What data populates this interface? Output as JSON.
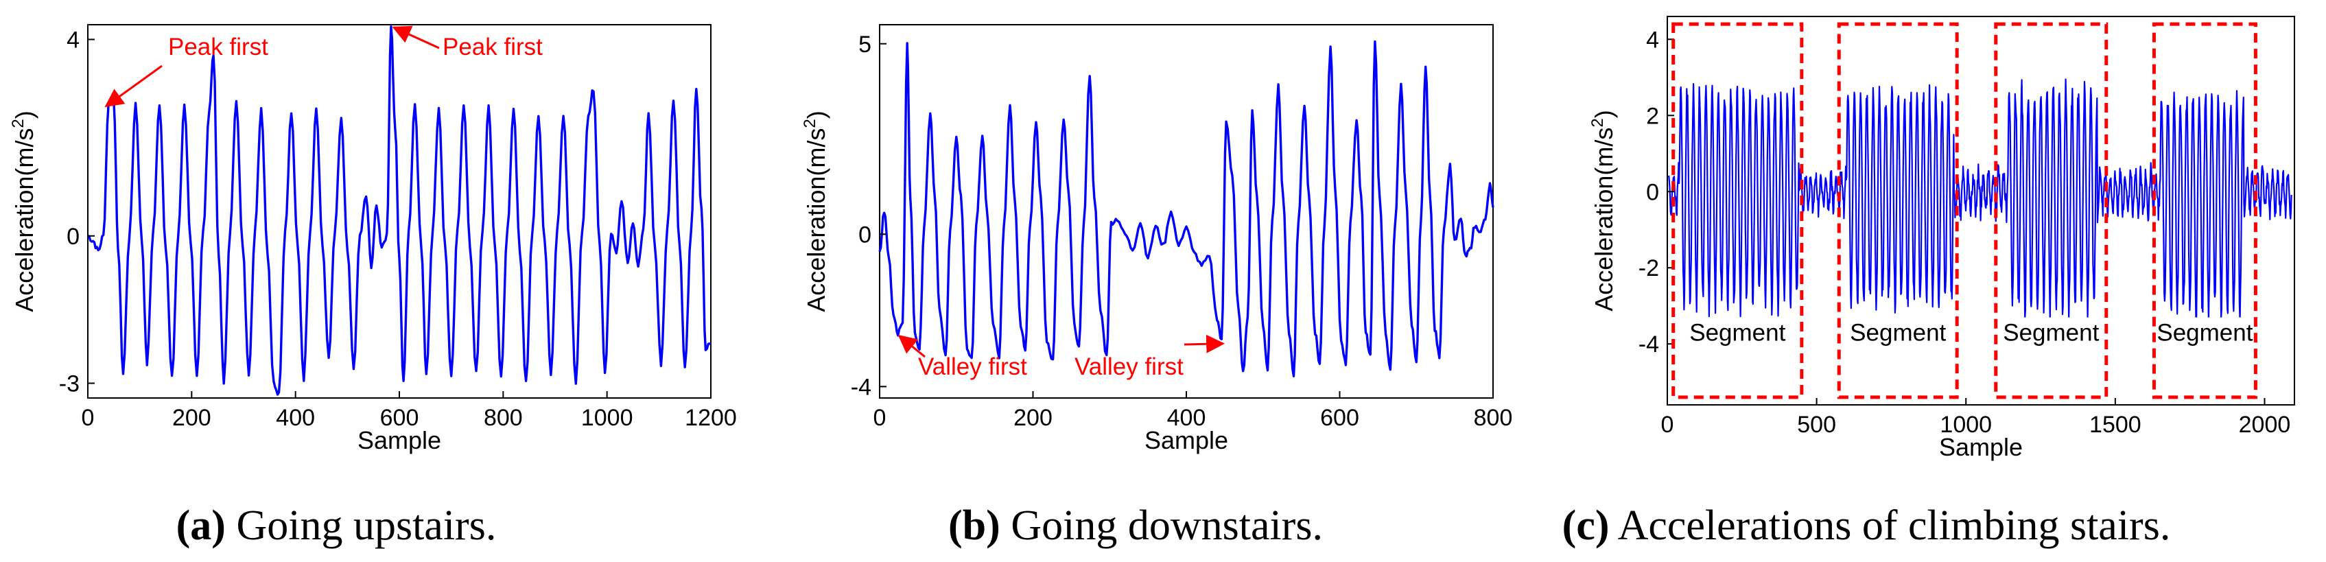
{
  "chart_data": [
    {
      "id": "a",
      "type": "line",
      "xlabel": "Sample",
      "ylabel": "Acceleration(m/s",
      "ylabel_sup": "2",
      "ylabel_close": ")",
      "xlim": [
        0,
        1200
      ],
      "ylim": [
        -3.3,
        4.3
      ],
      "xticks": [
        0,
        200,
        400,
        600,
        800,
        1000,
        1200
      ],
      "yticks": [
        -3,
        0,
        4
      ],
      "line_color": "#0000ff",
      "series": [
        {
          "name": "acceleration",
          "keypoints": [
            [
              0,
              0
            ],
            [
              10,
              -0.1
            ],
            [
              20,
              -0.3
            ],
            [
              30,
              0
            ],
            [
              40,
              2.7
            ],
            [
              50,
              2.8
            ],
            [
              58,
              -0.2
            ],
            [
              68,
              -2.8
            ],
            [
              80,
              0
            ],
            [
              92,
              2.7
            ],
            [
              104,
              -0.1
            ],
            [
              114,
              -2.6
            ],
            [
              126,
              0.1
            ],
            [
              138,
              2.7
            ],
            [
              150,
              -0.2
            ],
            [
              162,
              -2.9
            ],
            [
              174,
              0
            ],
            [
              186,
              2.7
            ],
            [
              198,
              -0.1
            ],
            [
              210,
              -2.9
            ],
            [
              222,
              0.1
            ],
            [
              234,
              2.6
            ],
            [
              242,
              3.7
            ],
            [
              252,
              -0.4
            ],
            [
              262,
              -3.0
            ],
            [
              274,
              0.1
            ],
            [
              286,
              2.8
            ],
            [
              298,
              -0.2
            ],
            [
              310,
              -2.8
            ],
            [
              322,
              0.1
            ],
            [
              334,
              2.6
            ],
            [
              346,
              -0.3
            ],
            [
              358,
              -3.0
            ],
            [
              368,
              -3.2
            ],
            [
              380,
              0.1
            ],
            [
              392,
              2.5
            ],
            [
              404,
              -0.2
            ],
            [
              416,
              -2.9
            ],
            [
              428,
              0.1
            ],
            [
              440,
              2.6
            ],
            [
              452,
              -0.2
            ],
            [
              464,
              -2.5
            ],
            [
              476,
              0.1
            ],
            [
              488,
              2.4
            ],
            [
              500,
              -0.3
            ],
            [
              512,
              -2.7
            ],
            [
              524,
              0
            ],
            [
              536,
              0.8
            ],
            [
              546,
              -0.6
            ],
            [
              556,
              0.6
            ],
            [
              566,
              -0.2
            ],
            [
              576,
              0
            ],
            [
              584,
              4.3
            ],
            [
              592,
              2.2
            ],
            [
              600,
              -0.5
            ],
            [
              608,
              -3.0
            ],
            [
              618,
              0.1
            ],
            [
              630,
              2.7
            ],
            [
              642,
              -0.2
            ],
            [
              652,
              -2.8
            ],
            [
              664,
              0.1
            ],
            [
              676,
              2.6
            ],
            [
              688,
              -0.2
            ],
            [
              700,
              -2.9
            ],
            [
              712,
              0.1
            ],
            [
              724,
              2.7
            ],
            [
              736,
              -0.2
            ],
            [
              748,
              -2.8
            ],
            [
              760,
              0.1
            ],
            [
              772,
              2.6
            ],
            [
              784,
              -0.2
            ],
            [
              796,
              -2.9
            ],
            [
              808,
              0.1
            ],
            [
              820,
              2.6
            ],
            [
              832,
              -0.3
            ],
            [
              844,
              -3.0
            ],
            [
              856,
              0.1
            ],
            [
              868,
              2.4
            ],
            [
              880,
              -0.1
            ],
            [
              892,
              -2.8
            ],
            [
              904,
              0.1
            ],
            [
              916,
              2.5
            ],
            [
              928,
              -0.2
            ],
            [
              940,
              -3.0
            ],
            [
              952,
              0.1
            ],
            [
              964,
              2.4
            ],
            [
              974,
              3.0
            ],
            [
              986,
              -0.2
            ],
            [
              996,
              -2.8
            ],
            [
              1008,
              0.1
            ],
            [
              1018,
              -0.3
            ],
            [
              1028,
              0.7
            ],
            [
              1040,
              -0.5
            ],
            [
              1050,
              0.3
            ],
            [
              1060,
              -0.6
            ],
            [
              1070,
              0.1
            ],
            [
              1080,
              2.5
            ],
            [
              1092,
              -0.2
            ],
            [
              1104,
              -2.6
            ],
            [
              1116,
              0.1
            ],
            [
              1128,
              2.8
            ],
            [
              1140,
              -0.2
            ],
            [
              1150,
              -2.7
            ],
            [
              1162,
              0.1
            ],
            [
              1172,
              3.0
            ],
            [
              1182,
              0.5
            ],
            [
              1190,
              -2.3
            ],
            [
              1200,
              -2.2
            ]
          ]
        }
      ],
      "annotations": [
        {
          "text": "Peak first",
          "x": 30,
          "y": 2.7
        },
        {
          "text": "Peak first",
          "x": 584,
          "y": 4.3
        }
      ]
    },
    {
      "id": "b",
      "type": "line",
      "xlabel": "Sample",
      "ylabel": "Acceleration(m/s",
      "ylabel_sup": "2",
      "ylabel_close": ")",
      "xlim": [
        0,
        800
      ],
      "ylim": [
        -4.3,
        5.5
      ],
      "xticks": [
        0,
        200,
        400,
        600,
        800
      ],
      "yticks": [
        -4,
        0,
        5
      ],
      "line_color": "#0000ff",
      "series": [
        {
          "name": "acceleration",
          "keypoints": [
            [
              0,
              -0.5
            ],
            [
              6,
              0.6
            ],
            [
              12,
              -0.6
            ],
            [
              18,
              -2.1
            ],
            [
              24,
              -2.6
            ],
            [
              30,
              -2.3
            ],
            [
              36,
              5.0
            ],
            [
              40,
              1.0
            ],
            [
              46,
              -2.6
            ],
            [
              52,
              -3.0
            ],
            [
              58,
              0.2
            ],
            [
              66,
              3.2
            ],
            [
              72,
              1.0
            ],
            [
              78,
              -2.0
            ],
            [
              86,
              -3.2
            ],
            [
              92,
              0.1
            ],
            [
              100,
              2.5
            ],
            [
              106,
              1.0
            ],
            [
              114,
              -3.0
            ],
            [
              120,
              -3.3
            ],
            [
              126,
              0.2
            ],
            [
              134,
              2.6
            ],
            [
              140,
              0.6
            ],
            [
              148,
              -2.4
            ],
            [
              156,
              -3.2
            ],
            [
              162,
              0.2
            ],
            [
              170,
              3.4
            ],
            [
              176,
              1.0
            ],
            [
              184,
              -2.4
            ],
            [
              190,
              -3.0
            ],
            [
              196,
              0.2
            ],
            [
              204,
              2.9
            ],
            [
              210,
              1.0
            ],
            [
              218,
              -2.8
            ],
            [
              226,
              -3.3
            ],
            [
              232,
              0.2
            ],
            [
              240,
              3.0
            ],
            [
              246,
              1.2
            ],
            [
              254,
              -2.4
            ],
            [
              260,
              -3.0
            ],
            [
              266,
              0.2
            ],
            [
              274,
              4.2
            ],
            [
              280,
              1.0
            ],
            [
              288,
              -2.0
            ],
            [
              296,
              -3.2
            ],
            [
              302,
              0.3
            ],
            [
              310,
              0.4
            ],
            [
              320,
              0
            ],
            [
              330,
              -0.4
            ],
            [
              340,
              0.3
            ],
            [
              350,
              -0.6
            ],
            [
              360,
              0.2
            ],
            [
              370,
              -0.3
            ],
            [
              380,
              0.6
            ],
            [
              390,
              -0.3
            ],
            [
              400,
              0.2
            ],
            [
              410,
              -0.5
            ],
            [
              420,
              -0.8
            ],
            [
              430,
              -0.6
            ],
            [
              440,
              -2.2
            ],
            [
              446,
              -2.8
            ],
            [
              452,
              3.0
            ],
            [
              460,
              1.5
            ],
            [
              468,
              -2.0
            ],
            [
              474,
              -3.6
            ],
            [
              480,
              -2.2
            ],
            [
              486,
              3.2
            ],
            [
              492,
              1.0
            ],
            [
              500,
              -2.4
            ],
            [
              506,
              -3.6
            ],
            [
              512,
              0.3
            ],
            [
              520,
              3.9
            ],
            [
              526,
              1.0
            ],
            [
              534,
              -2.6
            ],
            [
              540,
              -3.7
            ],
            [
              546,
              0.3
            ],
            [
              554,
              3.4
            ],
            [
              560,
              1.0
            ],
            [
              568,
              -2.6
            ],
            [
              574,
              -3.4
            ],
            [
              580,
              0.2
            ],
            [
              588,
              4.9
            ],
            [
              594,
              1.2
            ],
            [
              602,
              -2.8
            ],
            [
              608,
              -3.4
            ],
            [
              614,
              0.3
            ],
            [
              622,
              3.0
            ],
            [
              628,
              1.0
            ],
            [
              634,
              -2.6
            ],
            [
              640,
              -3.2
            ],
            [
              646,
              5.1
            ],
            [
              652,
              1.0
            ],
            [
              660,
              -2.6
            ],
            [
              666,
              -3.6
            ],
            [
              672,
              0.2
            ],
            [
              680,
              3.9
            ],
            [
              686,
              1.2
            ],
            [
              694,
              -2.4
            ],
            [
              700,
              -3.4
            ],
            [
              706,
              0.4
            ],
            [
              712,
              4.4
            ],
            [
              718,
              1.0
            ],
            [
              724,
              -2.5
            ],
            [
              730,
              -3.2
            ],
            [
              736,
              0.2
            ],
            [
              744,
              1.8
            ],
            [
              750,
              -0.2
            ],
            [
              758,
              0.4
            ],
            [
              764,
              -0.6
            ],
            [
              770,
              -0.4
            ],
            [
              776,
              0.2
            ],
            [
              784,
              0.1
            ],
            [
              790,
              0.4
            ],
            [
              796,
              1.3
            ],
            [
              800,
              0.7
            ]
          ]
        }
      ],
      "annotations": [
        {
          "text": "Valley first",
          "x": 24,
          "y": -2.6
        },
        {
          "text": "Valley first",
          "x": 446,
          "y": -2.8
        }
      ]
    },
    {
      "id": "c",
      "type": "line",
      "xlabel": "Sample",
      "ylabel": "Acceleration(m/s",
      "ylabel_sup": "2",
      "ylabel_close": ")",
      "xlim": [
        0,
        2100
      ],
      "ylim": [
        -5.6,
        4.6
      ],
      "xticks": [
        0,
        500,
        1000,
        1500,
        2000
      ],
      "yticks": [
        -4,
        -2,
        0,
        2,
        4
      ],
      "line_color": "#0000ff",
      "generator": {
        "base_period": 21,
        "segments": [
          {
            "start": 40,
            "end": 440,
            "amp_hi": 2.7,
            "amp_lo": -3.0
          },
          {
            "start": 600,
            "end": 960,
            "amp_hi": 2.6,
            "amp_lo": -3.0
          },
          {
            "start": 1140,
            "end": 1440,
            "amp_hi": 2.7,
            "amp_lo": -3.1
          },
          {
            "start": 1650,
            "end": 1930,
            "amp_hi": 2.5,
            "amp_lo": -3.3
          }
        ],
        "quiet_amp": 0.5
      },
      "boxes": [
        {
          "label": "Segment",
          "x0": 20,
          "x1": 450
        },
        {
          "label": "Segment",
          "x0": 575,
          "x1": 970
        },
        {
          "label": "Segment",
          "x0": 1100,
          "x1": 1470
        },
        {
          "label": "Segment",
          "x0": 1630,
          "x1": 1970
        }
      ],
      "box_ylim": [
        -5.4,
        4.4
      ],
      "box_color": "#ff0000"
    }
  ],
  "captions": [
    {
      "letter": "(a)",
      "text": " Going upstairs."
    },
    {
      "letter": "(b)",
      "text": " Going downstairs."
    },
    {
      "letter": "(c)",
      "text": " Accelerations of climbing stairs."
    }
  ]
}
